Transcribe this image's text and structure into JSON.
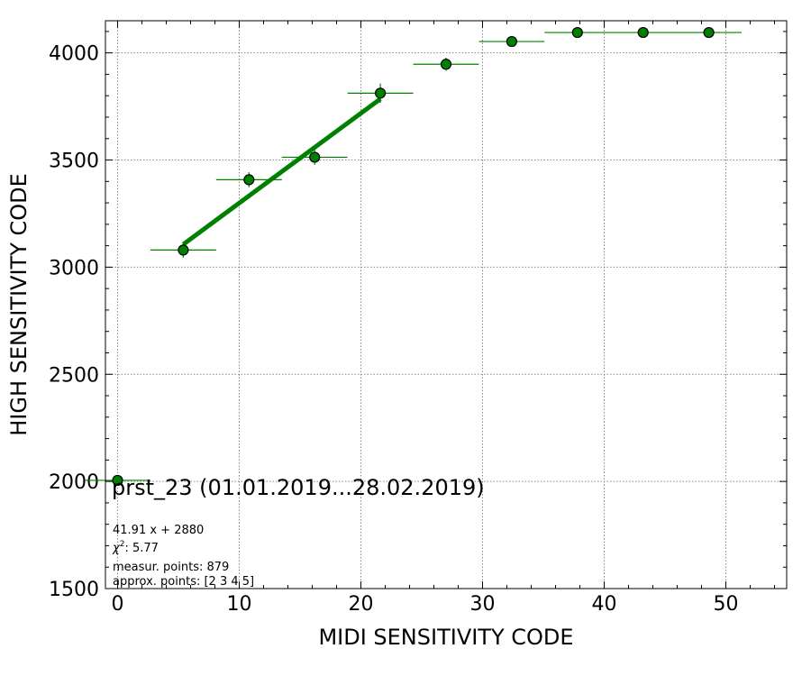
{
  "chart_data": {
    "type": "scatter",
    "xlabel": "MIDI SENSITIVITY CODE",
    "ylabel": "HIGH SENSITIVITY CODE",
    "xlim": [
      -1,
      55
    ],
    "ylim": [
      1500,
      4150
    ],
    "x_ticks": [
      0,
      10,
      20,
      30,
      40,
      50
    ],
    "y_ticks": [
      1500,
      2000,
      2500,
      3000,
      3500,
      4000
    ],
    "x_minor_step": 2,
    "y_minor_step": 100,
    "grid": true,
    "colors": {
      "marker": "#008000",
      "edge": "#000000",
      "fit": "#008000",
      "errorbar": "#008000",
      "grid": "#888888"
    },
    "points": [
      {
        "x": 0.0,
        "y": 2005,
        "xerr": 2.7,
        "yerr": 8
      },
      {
        "x": 5.4,
        "y": 3080,
        "xerr": 2.7,
        "yerr": 35
      },
      {
        "x": 10.8,
        "y": 3408,
        "xerr": 2.7,
        "yerr": 35
      },
      {
        "x": 16.2,
        "y": 3513,
        "xerr": 2.7,
        "yerr": 35
      },
      {
        "x": 21.6,
        "y": 3812,
        "xerr": 2.7,
        "yerr": 45
      },
      {
        "x": 27.0,
        "y": 3947,
        "xerr": 2.7,
        "yerr": 30
      },
      {
        "x": 32.4,
        "y": 4053,
        "xerr": 2.7,
        "yerr": 25
      },
      {
        "x": 37.8,
        "y": 4095,
        "xerr": 2.7,
        "yerr": 5
      },
      {
        "x": 43.2,
        "y": 4095,
        "xerr": 2.7,
        "yerr": 5
      },
      {
        "x": 48.6,
        "y": 4095,
        "xerr": 2.7,
        "yerr": 5
      }
    ],
    "fit": {
      "slope": 41.91,
      "intercept": 2880,
      "x_range": [
        5.4,
        21.6
      ]
    },
    "annotation": {
      "title": "prst_23 (01.01.2019...28.02.2019)",
      "equation": "41.91 x + 2880",
      "chi2_symbol": "χ",
      "chi2_exp": "2",
      "chi2_value": ": 5.77",
      "measur_points": "measur. points: 879",
      "approx_points": "approx. points: [2 3 4 5]"
    }
  }
}
